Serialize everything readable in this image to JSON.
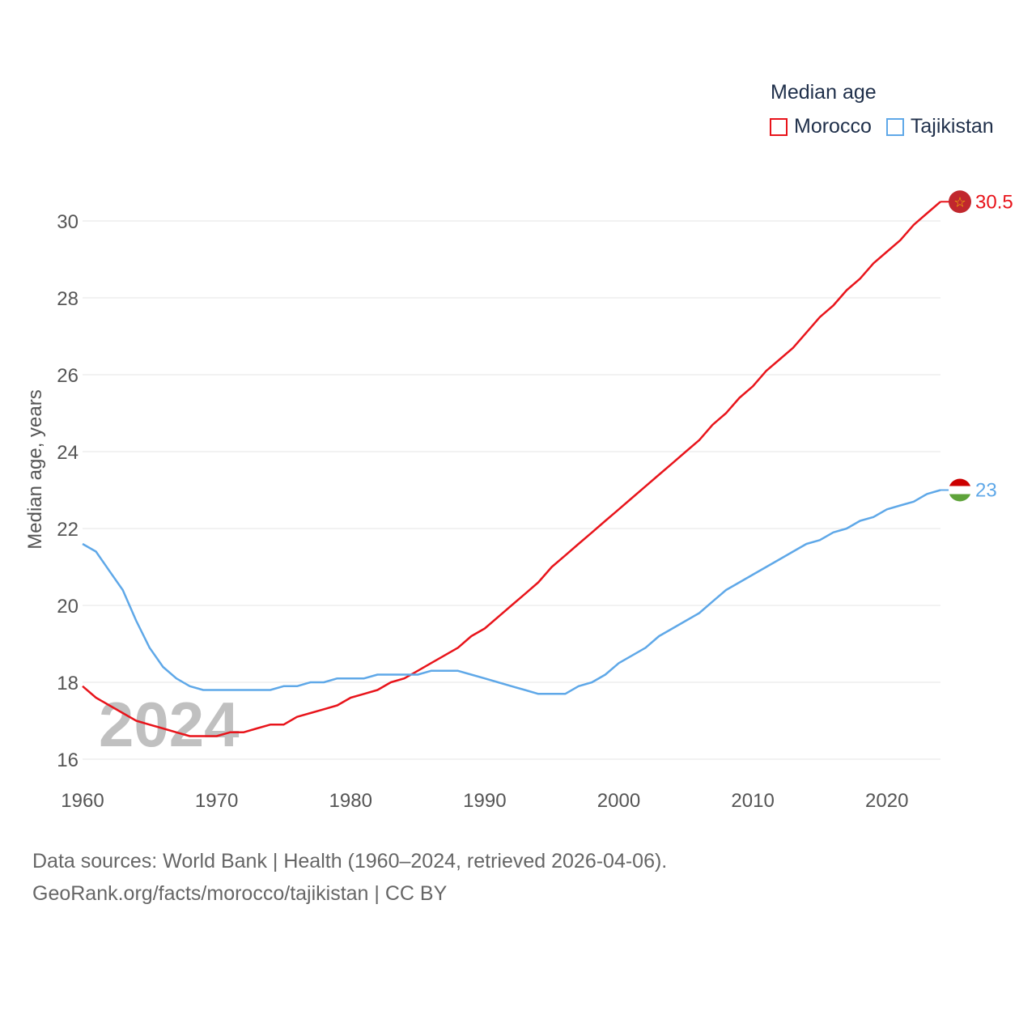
{
  "legend": {
    "title": "Median age",
    "items": [
      "Morocco",
      "Tajikistan"
    ]
  },
  "footer": {
    "line1": "Data sources: World Bank | Health (1960–2024, retrieved 2026-04-06).",
    "line2": "GeoRank.org/facts/morocco/tajikistan | CC BY"
  },
  "colors": {
    "morocco": "#e8141b",
    "tajikistan": "#5fa8e8",
    "grid": "#e6e6e6",
    "axis_text": "#555555",
    "watermark": "#c0c0c0"
  },
  "chart_data": {
    "type": "line",
    "title": "Median age",
    "xlabel": "",
    "ylabel": "Median age, years",
    "xlim": [
      1960,
      2024
    ],
    "ylim": [
      16,
      31
    ],
    "yticks": [
      16,
      18,
      20,
      22,
      24,
      26,
      28,
      30
    ],
    "xticks": [
      1960,
      1970,
      1980,
      1990,
      2000,
      2010,
      2020
    ],
    "watermark_year": "2024",
    "x": [
      1960,
      1961,
      1962,
      1963,
      1964,
      1965,
      1966,
      1967,
      1968,
      1969,
      1970,
      1971,
      1972,
      1973,
      1974,
      1975,
      1976,
      1977,
      1978,
      1979,
      1980,
      1981,
      1982,
      1983,
      1984,
      1985,
      1986,
      1987,
      1988,
      1989,
      1990,
      1991,
      1992,
      1993,
      1994,
      1995,
      1996,
      1997,
      1998,
      1999,
      2000,
      2001,
      2002,
      2003,
      2004,
      2005,
      2006,
      2007,
      2008,
      2009,
      2010,
      2011,
      2012,
      2013,
      2014,
      2015,
      2016,
      2017,
      2018,
      2019,
      2020,
      2021,
      2022,
      2023,
      2024
    ],
    "series": [
      {
        "name": "Morocco",
        "end_label": "30.5",
        "end_icon": "morocco-flag",
        "values": [
          17.9,
          17.6,
          17.4,
          17.2,
          17.0,
          16.9,
          16.8,
          16.7,
          16.6,
          16.6,
          16.6,
          16.7,
          16.7,
          16.8,
          16.9,
          16.9,
          17.1,
          17.2,
          17.3,
          17.4,
          17.6,
          17.7,
          17.8,
          18.0,
          18.1,
          18.3,
          18.5,
          18.7,
          18.9,
          19.2,
          19.4,
          19.7,
          20.0,
          20.3,
          20.6,
          21.0,
          21.3,
          21.6,
          21.9,
          22.2,
          22.5,
          22.8,
          23.1,
          23.4,
          23.7,
          24.0,
          24.3,
          24.7,
          25.0,
          25.4,
          25.7,
          26.1,
          26.4,
          26.7,
          27.1,
          27.5,
          27.8,
          28.2,
          28.5,
          28.9,
          29.2,
          29.5,
          29.9,
          30.2,
          30.5
        ]
      },
      {
        "name": "Tajikistan",
        "end_label": "23",
        "end_icon": "tajikistan-flag",
        "values": [
          21.6,
          21.4,
          20.9,
          20.4,
          19.6,
          18.9,
          18.4,
          18.1,
          17.9,
          17.8,
          17.8,
          17.8,
          17.8,
          17.8,
          17.8,
          17.9,
          17.9,
          18.0,
          18.0,
          18.1,
          18.1,
          18.1,
          18.2,
          18.2,
          18.2,
          18.2,
          18.3,
          18.3,
          18.3,
          18.2,
          18.1,
          18.0,
          17.9,
          17.8,
          17.7,
          17.7,
          17.7,
          17.9,
          18.0,
          18.2,
          18.5,
          18.7,
          18.9,
          19.2,
          19.4,
          19.6,
          19.8,
          20.1,
          20.4,
          20.6,
          20.8,
          21.0,
          21.2,
          21.4,
          21.6,
          21.7,
          21.9,
          22.0,
          22.2,
          22.3,
          22.5,
          22.6,
          22.7,
          22.9,
          23.0
        ]
      }
    ]
  }
}
